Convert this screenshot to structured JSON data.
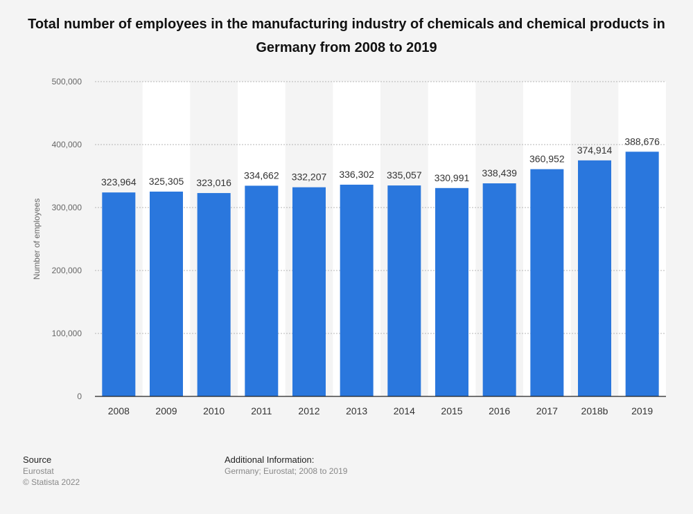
{
  "title": "Total number of employees in the manufacturing industry of chemicals and chemical products in Germany from 2008 to 2019",
  "colors": {
    "bar": "#2a77dd",
    "band": "#ffffff",
    "background": "#f4f4f4"
  },
  "chart_data": {
    "type": "bar",
    "categories": [
      "2008",
      "2009",
      "2010",
      "2011",
      "2012",
      "2013",
      "2014",
      "2015",
      "2016",
      "2017",
      "2018b",
      "2019"
    ],
    "values": [
      323964,
      325305,
      323016,
      334662,
      332207,
      336302,
      335057,
      330991,
      338439,
      360952,
      374914,
      388676
    ],
    "value_labels": [
      "323,964",
      "325,305",
      "323,016",
      "334,662",
      "332,207",
      "336,302",
      "335,057",
      "330,991",
      "338,439",
      "360,952",
      "374,914",
      "388,676"
    ],
    "ylabel": "Number of employees",
    "ylim": [
      0,
      500000
    ],
    "yticks": [
      0,
      100000,
      200000,
      300000,
      400000,
      500000
    ],
    "ytick_labels": [
      "0",
      "100,000",
      "200,000",
      "300,000",
      "400,000",
      "500,000"
    ],
    "grid": true
  },
  "footer": {
    "source_heading": "Source",
    "source_lines": [
      "Eurostat",
      "© Statista 2022"
    ],
    "additional_heading": "Additional Information:",
    "additional_text": "Germany; Eurostat; 2008 to 2019"
  }
}
